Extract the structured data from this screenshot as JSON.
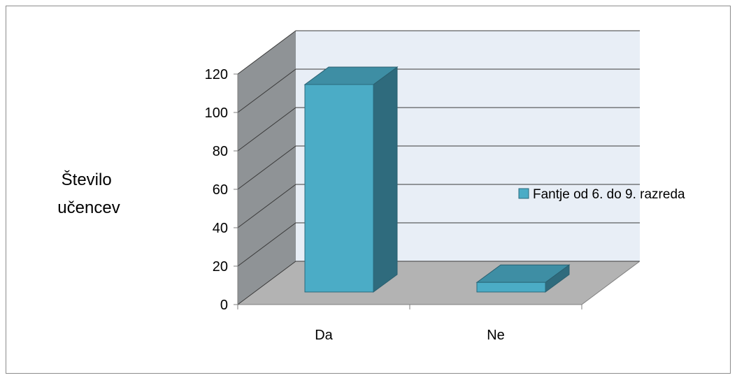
{
  "chart_data": {
    "type": "bar",
    "style": "3d-column",
    "title": "",
    "ylabel": "Število učencev",
    "ylabel_lines": [
      "Število",
      "učencev"
    ],
    "categories": [
      "Da",
      "Ne"
    ],
    "series": [
      {
        "name": "Fantje od 6. do 9. razreda",
        "values": [
          108,
          5
        ]
      }
    ],
    "ylim": [
      0,
      120
    ],
    "yticks": [
      0,
      20,
      40,
      60,
      80,
      100,
      120
    ],
    "grid": true,
    "legend_position": "right",
    "colors": {
      "bar_front": "#4bacc6",
      "bar_top": "#3e8ea4",
      "bar_side": "#2f6b7d",
      "back_wall": "#e8eef6",
      "side_wall": "#8f9396",
      "floor": "#b3b3b3",
      "gridline": "#3a3a3a"
    }
  }
}
